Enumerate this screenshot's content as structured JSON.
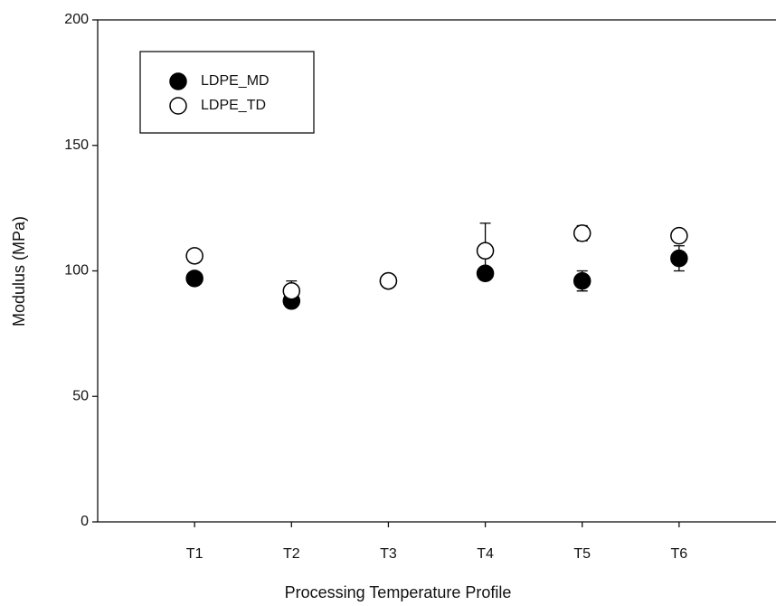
{
  "chart_data": {
    "type": "scatter",
    "x_label": "Processing Temperature Profile",
    "y_label": "Modulus (MPa)",
    "categories": [
      "T1",
      "T2",
      "T3",
      "T4",
      "T5",
      "T6"
    ],
    "series": [
      {
        "name": "LDPE_MD",
        "color": "#000000",
        "filled": true,
        "values": [
          97,
          88,
          96,
          99,
          96,
          105
        ],
        "errors": [
          1,
          2,
          1,
          2,
          4,
          5
        ]
      },
      {
        "name": "LDPE_TD",
        "color": "#000000",
        "filled": false,
        "values": [
          106,
          92,
          96,
          108,
          115,
          114
        ],
        "errors": [
          1,
          4,
          1,
          11,
          3,
          1
        ]
      }
    ],
    "ylim": [
      0,
      200
    ],
    "yticks": [
      0,
      50,
      100,
      150,
      200
    ],
    "legend": "upper-left"
  }
}
